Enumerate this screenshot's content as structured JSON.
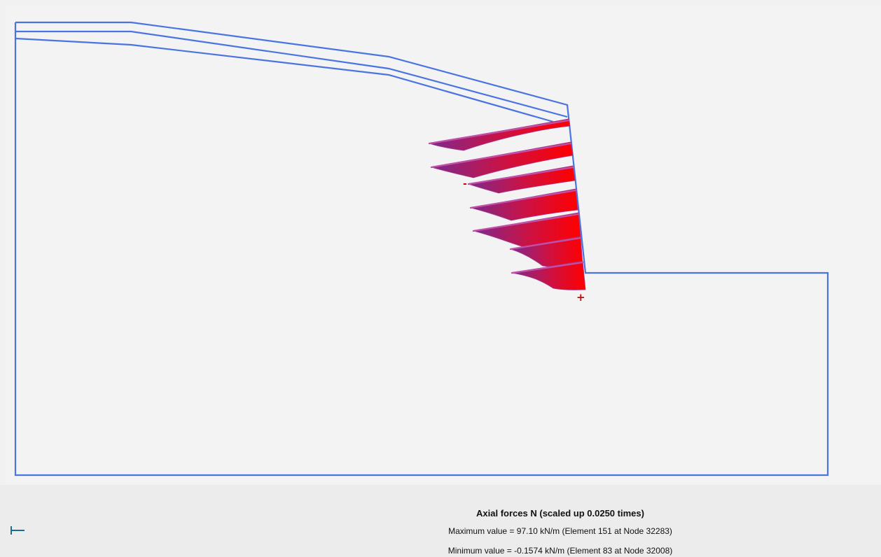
{
  "result": {
    "title": "Axial forces N (scaled up 0.0250 times)",
    "max_text": "Maximum value = 97.10 kN/m (Element 151 at Node 32283)",
    "min_text": "Minimum value = -0.1574 kN/m (Element 83 at Node 32008)",
    "max_value": 97.1,
    "min_value": -0.1574,
    "unit": "kN/m",
    "scale_factor": 0.025,
    "sign_markers": [
      "-",
      "+"
    ]
  },
  "colors": {
    "geometry_outline": "#4a74e0",
    "force_low": "#7d2a8e",
    "force_high": "#ff0000",
    "anchor_line": "#c24fa8",
    "marker": "#d40000",
    "axis_glyph": "#1a6f8a",
    "background": "#f3f3f3"
  },
  "icons": {
    "axis": "axis-triad-icon"
  }
}
